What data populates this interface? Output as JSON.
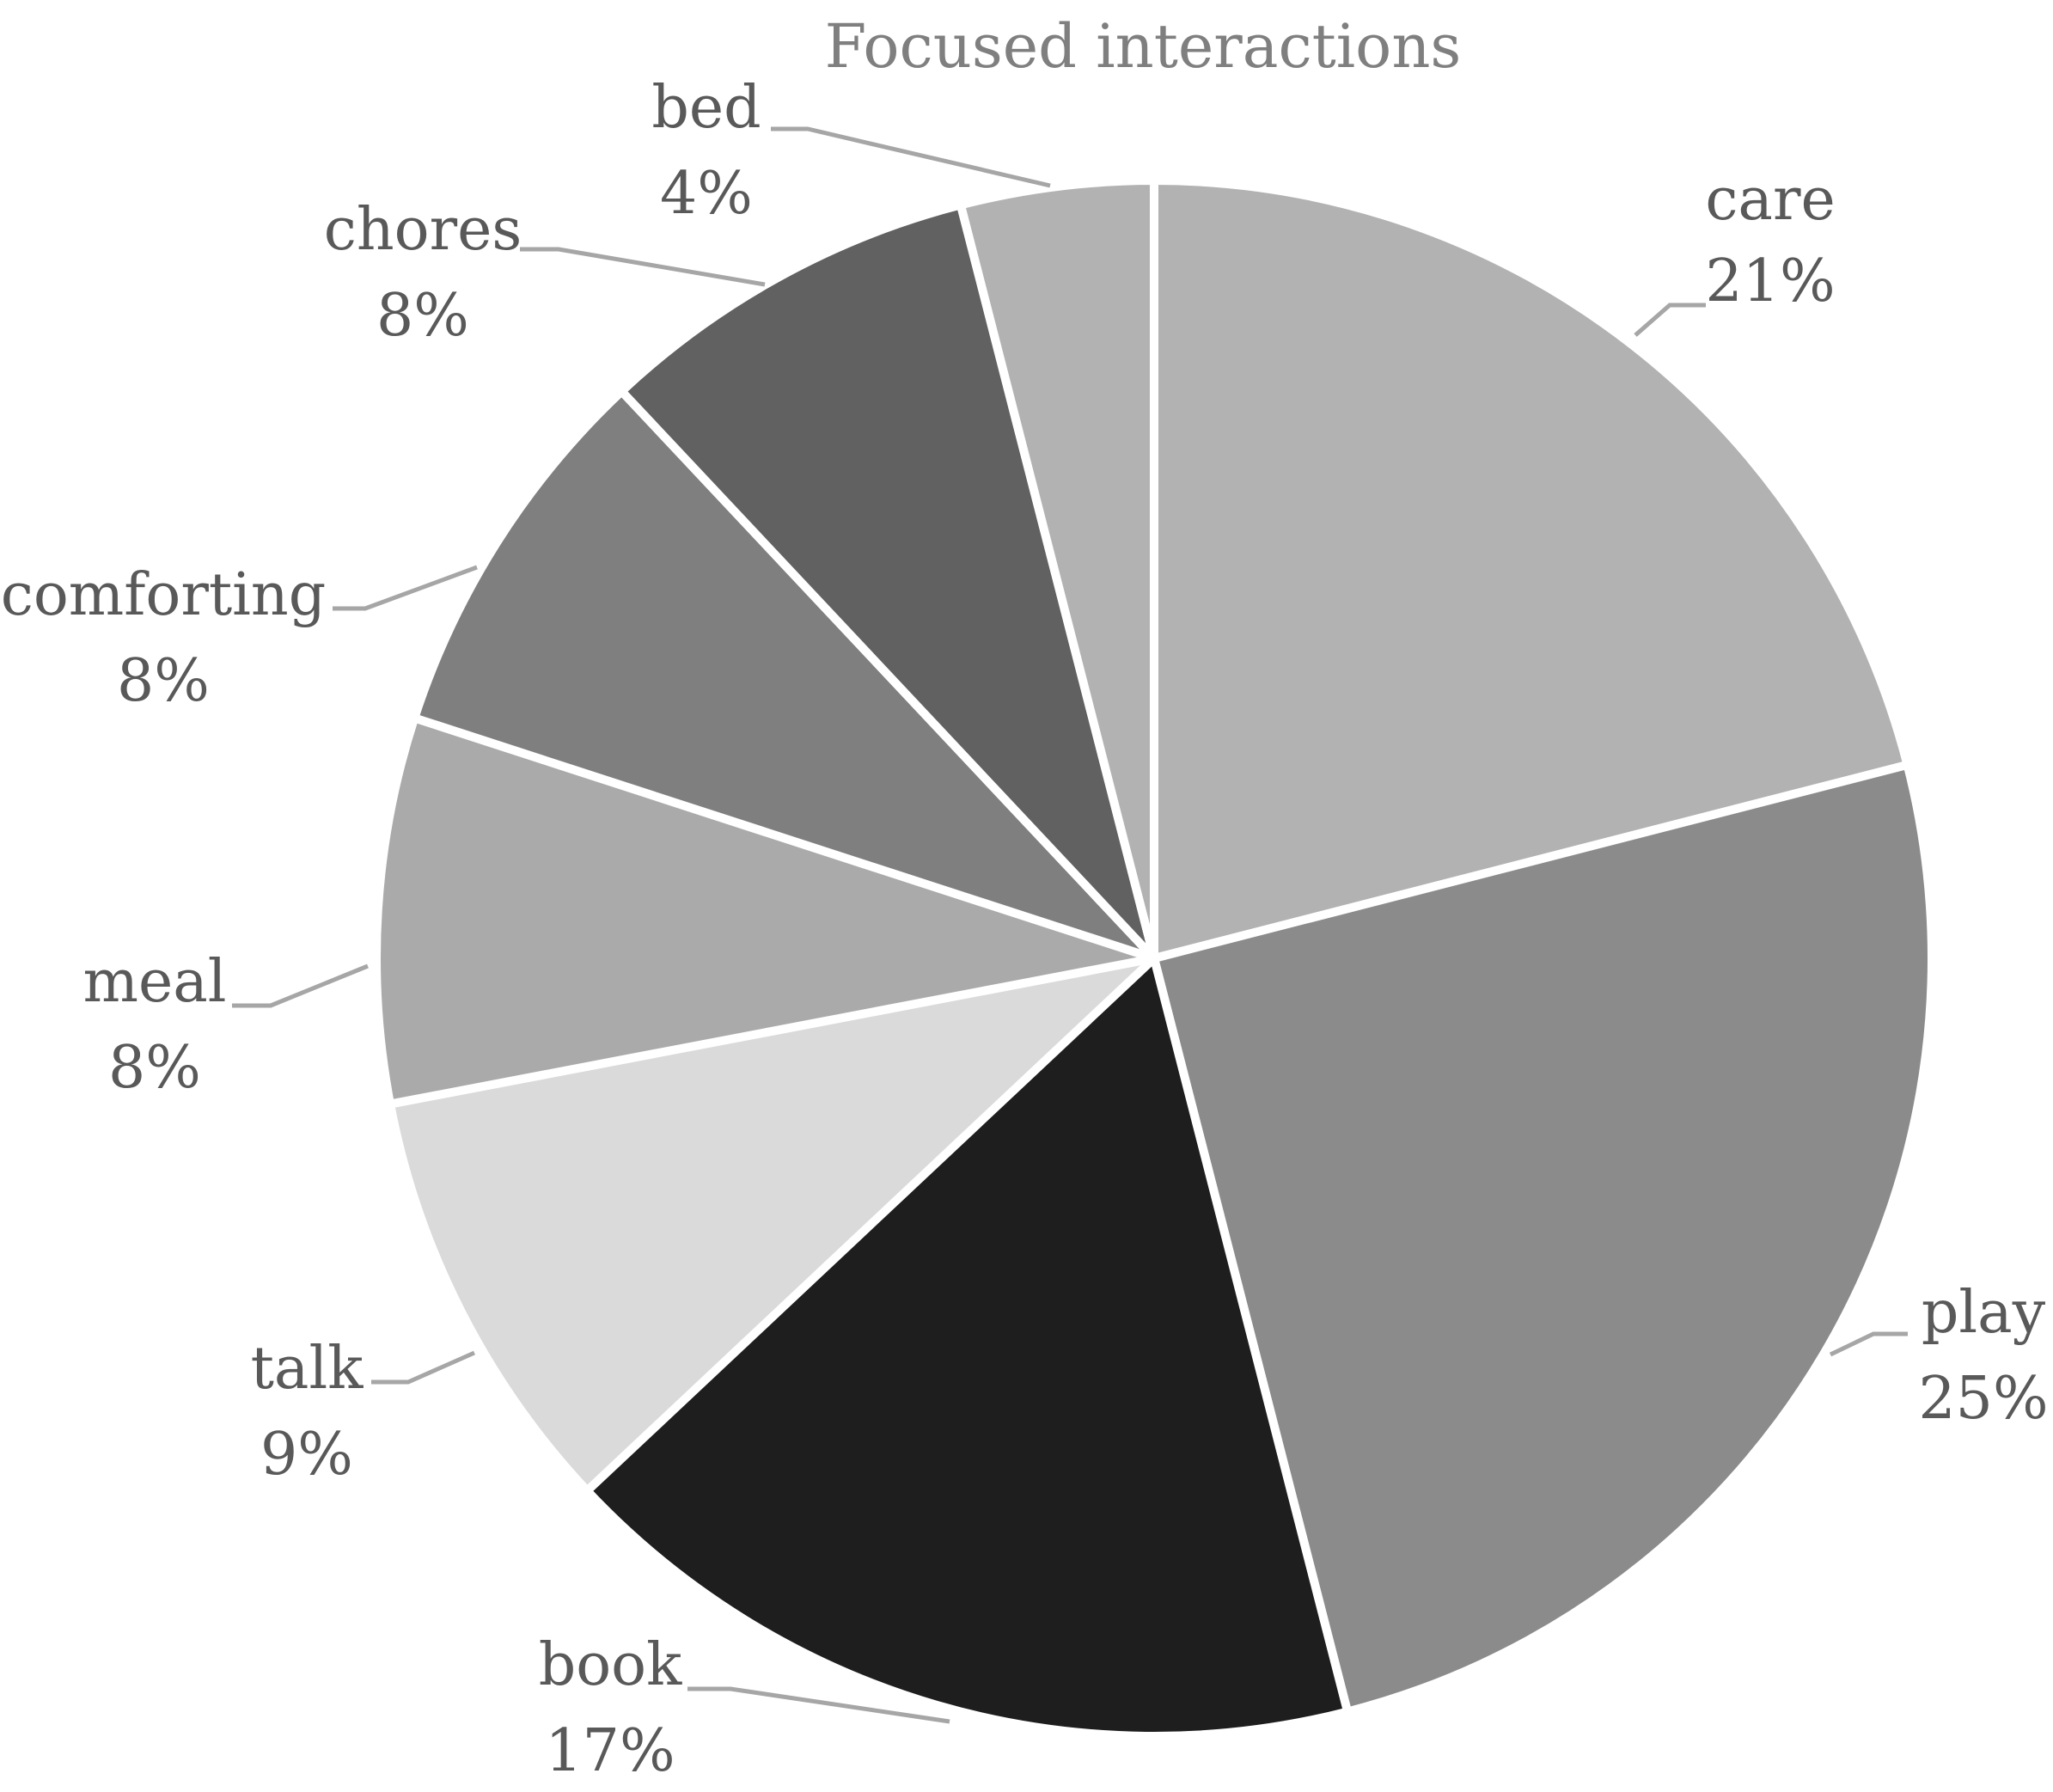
{
  "chart_data": {
    "type": "pie",
    "title": "Focused interactions",
    "slices": [
      {
        "label": "care",
        "percent_text": "21%",
        "value": 21,
        "color": "#b2b2b2"
      },
      {
        "label": "play",
        "percent_text": "25%",
        "value": 25,
        "color": "#8b8b8b"
      },
      {
        "label": "book",
        "percent_text": "17%",
        "value": 17,
        "color": "#1e1e1e"
      },
      {
        "label": "talk",
        "percent_text": "9%",
        "value": 9,
        "color": "#dadada"
      },
      {
        "label": "meal",
        "percent_text": "8%",
        "value": 8,
        "color": "#aaaaaa"
      },
      {
        "label": "comforting",
        "percent_text": "8%",
        "value": 8,
        "color": "#7f7f7f"
      },
      {
        "label": "chores",
        "percent_text": "8%",
        "value": 8,
        "color": "#616161"
      },
      {
        "label": "bed",
        "percent_text": "4%",
        "value": 4,
        "color": "#b2b2b2"
      }
    ],
    "start_direction": "12 o'clock",
    "order": "clockwise",
    "legend": "none",
    "label_style": "outside with leader lines"
  }
}
